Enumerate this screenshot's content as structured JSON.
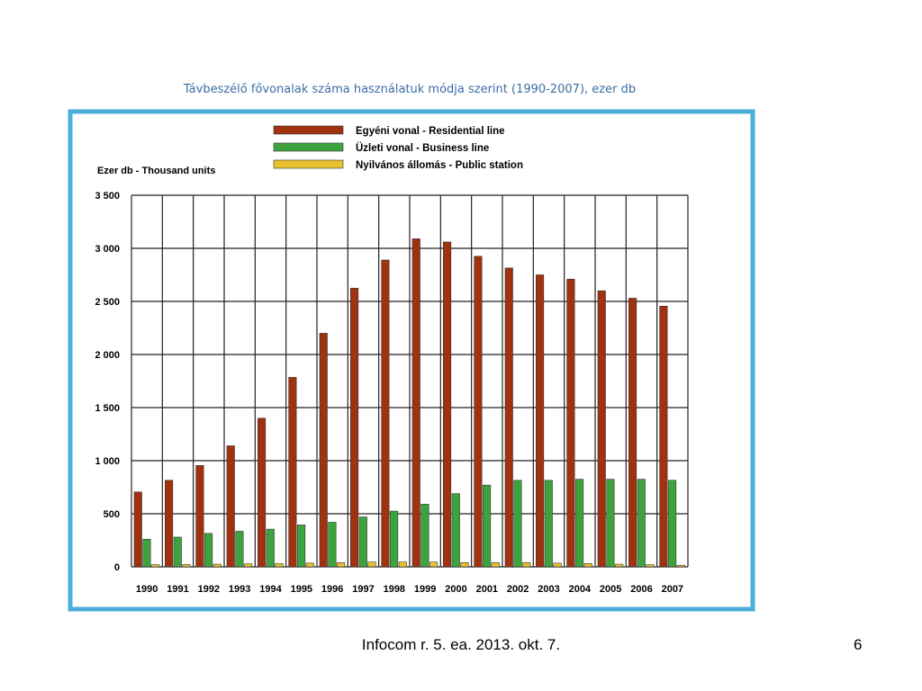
{
  "slide": {
    "title": "Távbeszélő fővonalak száma használatuk módja szerint (1990-2007), ezer db",
    "footer": "Infocom r. 5. ea. 2013. okt. 7.",
    "page_number": "6"
  },
  "chart_data": {
    "type": "bar",
    "ylabel": "Ezer db - Thousand units",
    "ylim": [
      0,
      3500
    ],
    "yticks": [
      0,
      500,
      1000,
      1500,
      2000,
      2500,
      3000,
      3500
    ],
    "ytick_labels": [
      "0",
      "500",
      "1 000",
      "1 500",
      "2 000",
      "2 500",
      "3 000",
      "3 500"
    ],
    "grid": true,
    "legend_position": "top",
    "frame_color": "#4aaed8",
    "categories": [
      "1990",
      "1991",
      "1992",
      "1993",
      "1994",
      "1995",
      "1996",
      "1997",
      "1998",
      "1999",
      "2000",
      "2001",
      "2002",
      "2003",
      "2004",
      "2005",
      "2006",
      "2007"
    ],
    "series": [
      {
        "name": "Egyéni vonal - Residential line",
        "color": "#a0320f",
        "values": [
          705,
          815,
          955,
          1140,
          1400,
          1785,
          2200,
          2625,
          2890,
          3090,
          3060,
          2925,
          2815,
          2750,
          2710,
          2600,
          2530,
          2455
        ]
      },
      {
        "name": "Üzleti vonal - Business line",
        "color": "#3da33d",
        "values": [
          260,
          280,
          315,
          335,
          355,
          395,
          420,
          470,
          525,
          590,
          690,
          770,
          815,
          815,
          825,
          825,
          825,
          815
        ]
      },
      {
        "name": "Nyilvános állomás - Public station",
        "color": "#e8c22c",
        "values": [
          20,
          22,
          25,
          28,
          30,
          35,
          40,
          45,
          45,
          45,
          40,
          40,
          40,
          35,
          30,
          25,
          20,
          15
        ]
      }
    ]
  }
}
